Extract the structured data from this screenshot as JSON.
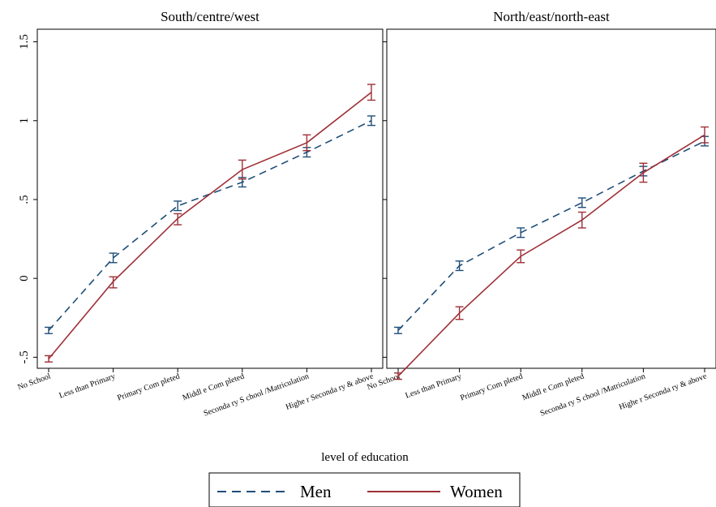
{
  "chart_data": {
    "type": "line",
    "xlabel": "level of education",
    "ylabel": "",
    "ylim": [
      -0.57,
      1.58
    ],
    "yticks": [
      "-.5",
      "0",
      ".5",
      "1",
      "1.5"
    ],
    "ytick_values": [
      -0.5,
      0,
      0.5,
      1,
      1.5
    ],
    "categories": [
      "No School",
      "Less than Primary",
      "Primary Com pleted",
      "Middl e Com pleted",
      "Seconda ry S chool /Matriculation",
      "Highe r Seconda ry & above"
    ],
    "legend": {
      "placement": "bottom-center",
      "entries": [
        "Men",
        "Women"
      ]
    },
    "grid": false,
    "colors": {
      "Men": "#1f4e79",
      "Women": "#9e3037",
      "axis": "#000000"
    },
    "panels": [
      {
        "title": "South/centre/west",
        "series": [
          {
            "name": "Men",
            "style": "dashed",
            "values": [
              -0.33,
              0.13,
              0.46,
              0.61,
              0.8,
              1.0
            ],
            "lower": [
              -0.35,
              0.1,
              0.43,
              0.58,
              0.77,
              0.97
            ],
            "upper": [
              -0.31,
              0.16,
              0.49,
              0.64,
              0.83,
              1.03
            ]
          },
          {
            "name": "Women",
            "style": "solid",
            "values": [
              -0.51,
              -0.02,
              0.38,
              0.69,
              0.86,
              1.18
            ],
            "lower": [
              -0.53,
              -0.06,
              0.34,
              0.63,
              0.81,
              1.13
            ],
            "upper": [
              -0.49,
              0.01,
              0.41,
              0.75,
              0.91,
              1.23
            ]
          }
        ]
      },
      {
        "title": "North/east/north-east",
        "series": [
          {
            "name": "Men",
            "style": "dashed",
            "values": [
              -0.33,
              0.08,
              0.29,
              0.48,
              0.68,
              0.87
            ],
            "lower": [
              -0.35,
              0.05,
              0.26,
              0.45,
              0.65,
              0.84
            ],
            "upper": [
              -0.31,
              0.11,
              0.32,
              0.51,
              0.71,
              0.9
            ]
          },
          {
            "name": "Women",
            "style": "solid",
            "values": [
              -0.62,
              -0.22,
              0.14,
              0.37,
              0.67,
              0.91
            ],
            "lower": [
              -0.64,
              -0.26,
              0.1,
              0.32,
              0.61,
              0.86
            ],
            "upper": [
              -0.6,
              -0.18,
              0.18,
              0.42,
              0.73,
              0.96
            ]
          }
        ]
      }
    ]
  }
}
